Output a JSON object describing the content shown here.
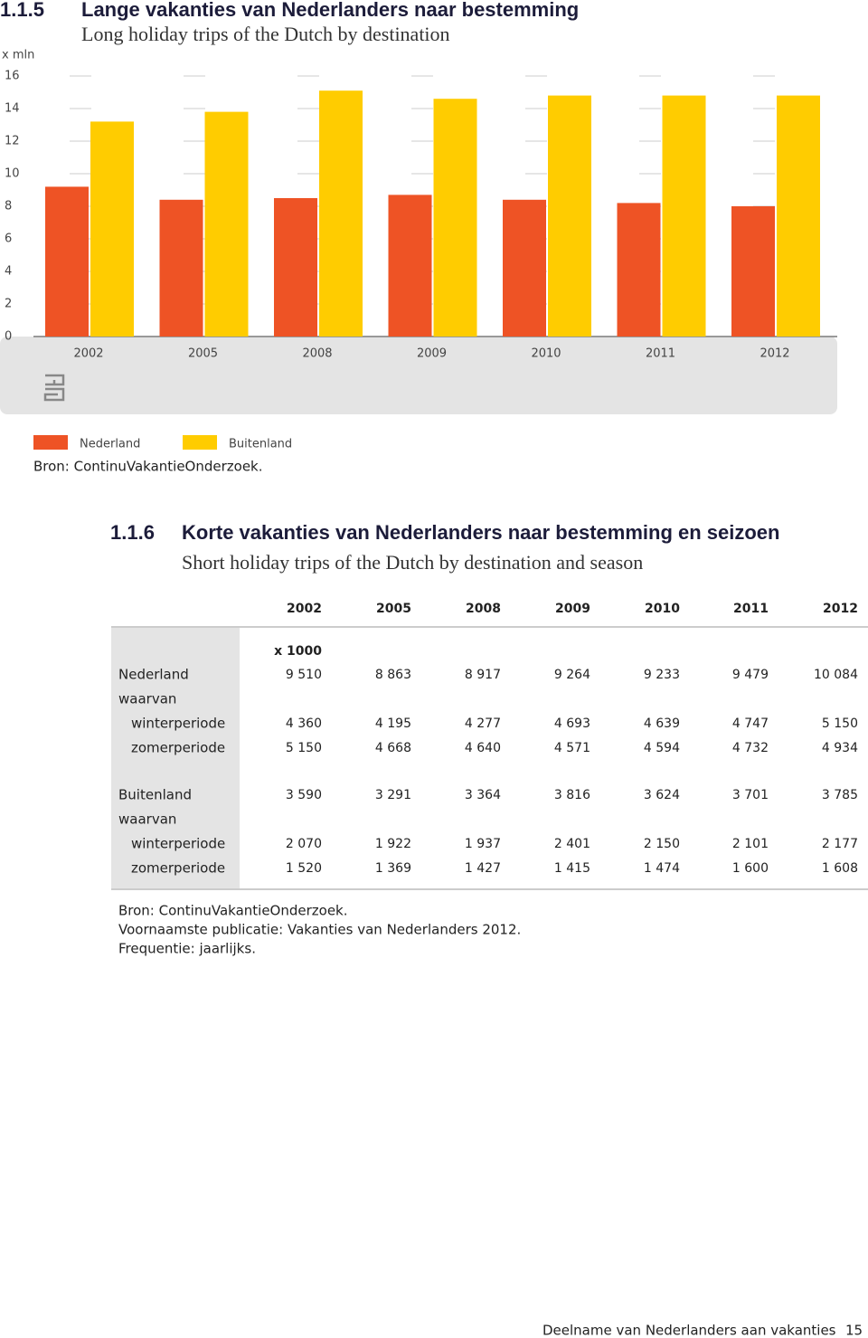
{
  "chart_data": {
    "type": "bar",
    "number": "1.1.5",
    "title": "Lange vakanties van Nederlanders naar bestemming",
    "subtitle": "Long holiday trips of the Dutch by destination",
    "y_label": "x mln",
    "categories": [
      "2002",
      "2005",
      "2008",
      "2009",
      "2010",
      "2011",
      "2012"
    ],
    "series": [
      {
        "name": "Nederland",
        "color": "#ee5325",
        "values": [
          9.2,
          8.4,
          8.5,
          8.7,
          8.4,
          8.2,
          8.0
        ]
      },
      {
        "name": "Buitenland",
        "color": "#ffcc00",
        "values": [
          13.2,
          13.8,
          15.1,
          14.6,
          14.8,
          14.8,
          14.8
        ]
      }
    ],
    "ylim": [
      0,
      16
    ],
    "yticks": [
      0,
      2,
      4,
      6,
      8,
      10,
      12,
      14,
      16
    ],
    "grid": true,
    "source": "Bron: ContinuVakantieOnderzoek."
  },
  "table": {
    "number": "1.1.6",
    "title": "Korte vakanties van Nederlanders naar bestemming en seizoen",
    "subtitle": "Short holiday trips of the Dutch by destination and season",
    "columns": [
      "2002",
      "2005",
      "2008",
      "2009",
      "2010",
      "2011",
      "2012"
    ],
    "unit": "x 1000",
    "groups": [
      {
        "label": "Nederland",
        "values": [
          "9 510",
          "8 863",
          "8 917",
          "9 264",
          "9 233",
          "9 479",
          "10 084"
        ],
        "sub_label": "waarvan",
        "subrows": [
          {
            "label": "winterperiode",
            "values": [
              "4 360",
              "4 195",
              "4 277",
              "4 693",
              "4 639",
              "4 747",
              "5 150"
            ]
          },
          {
            "label": "zomerperiode",
            "values": [
              "5 150",
              "4 668",
              "4 640",
              "4 571",
              "4 594",
              "4 732",
              "4 934"
            ]
          }
        ]
      },
      {
        "label": "Buitenland",
        "values": [
          "3 590",
          "3 291",
          "3 364",
          "3 816",
          "3 624",
          "3 701",
          "3 785"
        ],
        "sub_label": "waarvan",
        "subrows": [
          {
            "label": "winterperiode",
            "values": [
              "2 070",
              "1 922",
              "1 937",
              "2 401",
              "2 150",
              "2 101",
              "2 177"
            ]
          },
          {
            "label": "zomerperiode",
            "values": [
              "1 520",
              "1 369",
              "1 427",
              "1 415",
              "1 474",
              "1 600",
              "1 608"
            ]
          }
        ]
      }
    ],
    "notes": [
      "Bron: ContinuVakantieOnderzoek.",
      "Voornaamste publicatie: Vakanties van Nederlanders 2012.",
      "Frequentie: jaarlijks."
    ]
  },
  "footer": {
    "text": "Deelname van Nederlanders aan vakanties",
    "page": "15"
  }
}
